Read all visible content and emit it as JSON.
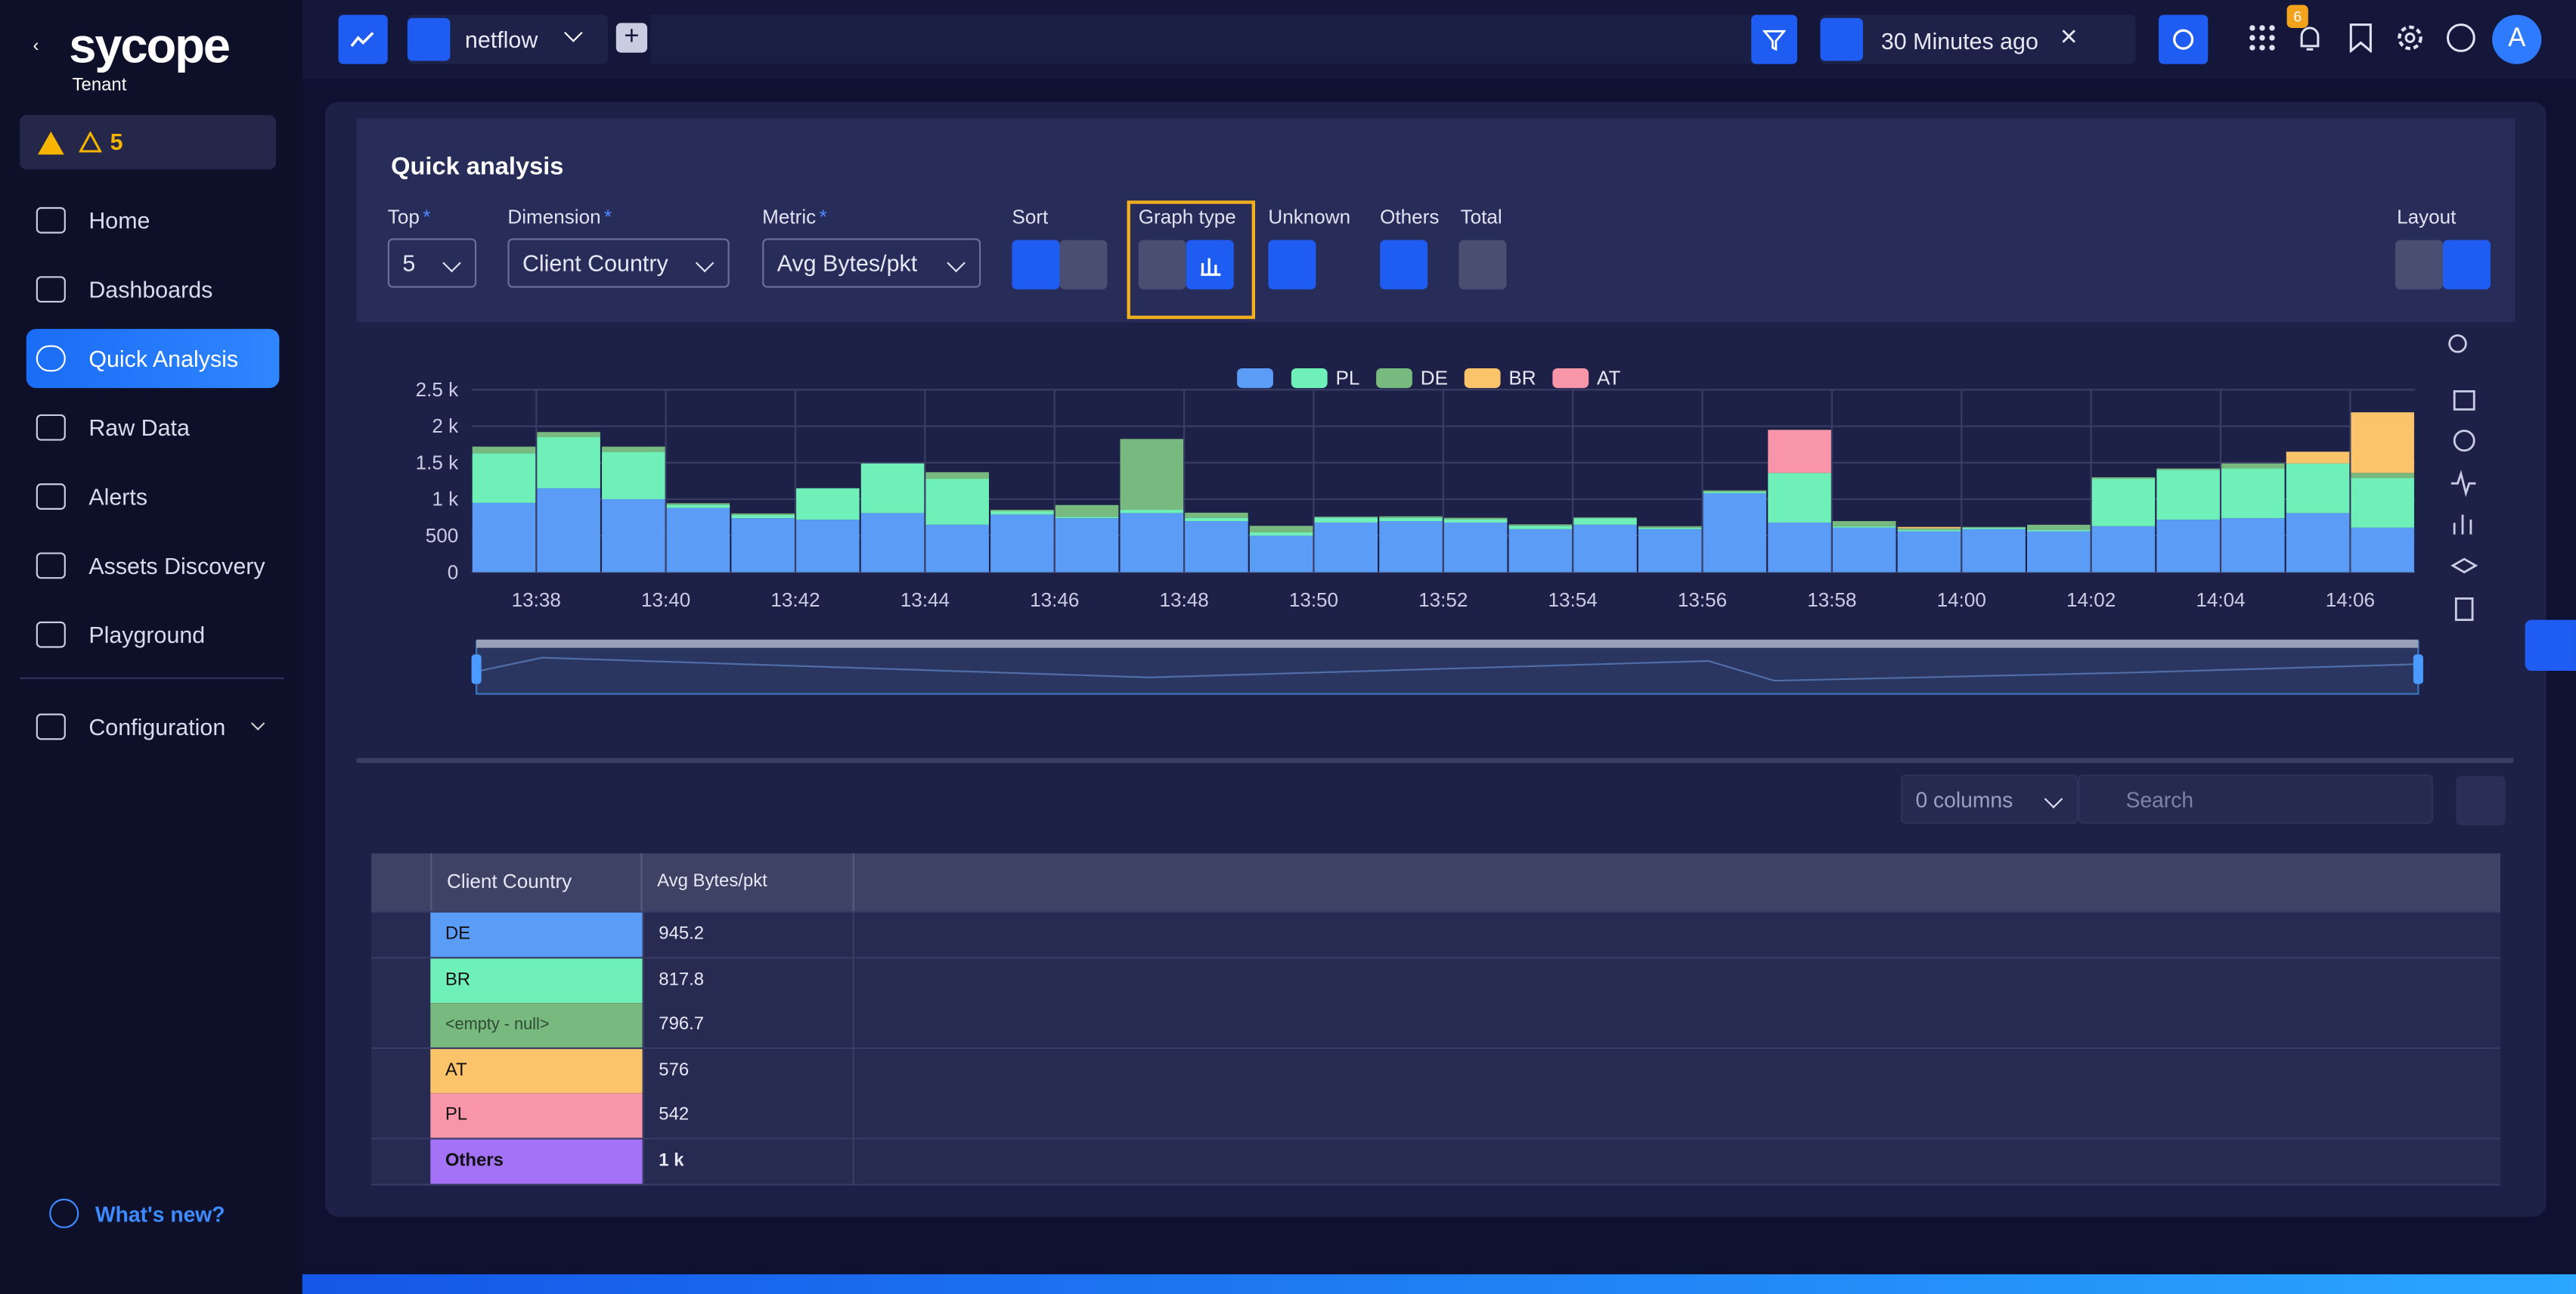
{
  "sidebar": {
    "logo": "sycope",
    "tenant": "Tenant",
    "alerts_count": "5",
    "nav": [
      "Home",
      "Dashboards",
      "Quick Analysis",
      "Raw Data",
      "Alerts",
      "Assets Discovery",
      "Playground",
      "Configuration"
    ],
    "whats_new": "What's new?"
  },
  "topbar": {
    "source": "netflow",
    "time_range": "30 Minutes ago",
    "notifications": "6",
    "avatar": "A"
  },
  "toolbar": {
    "title": "Quick analysis",
    "required_mark": "*",
    "top_label": "Top",
    "top_value": "5",
    "dimension_label": "Dimension",
    "dimension_value": "Client Country",
    "metric_label": "Metric",
    "metric_value": "Avg Bytes/pkt",
    "sort_label": "Sort",
    "graph_type_label": "Graph type",
    "unknown_label": "Unknown",
    "others_label": "Others",
    "total_label": "Total",
    "layout_label": "Layout"
  },
  "chart_data": {
    "type": "bar",
    "stacked": true,
    "grid": true,
    "categories": [
      null,
      "13:38",
      null,
      "13:40",
      null,
      "13:42",
      null,
      "13:44",
      null,
      "13:46",
      null,
      "13:48",
      null,
      "13:50",
      null,
      "13:52",
      null,
      "13:54",
      null,
      "13:56",
      null,
      "13:58",
      null,
      "14:00",
      null,
      "14:02",
      null,
      "14:04",
      null,
      "14:06"
    ],
    "ylim": [
      0,
      2500
    ],
    "yticks": [
      0,
      500,
      {
        "value": 1000,
        "label": "1 k"
      },
      {
        "value": 1500,
        "label": "1.5 k"
      },
      {
        "value": 2000,
        "label": "2 k"
      },
      {
        "value": 2500,
        "label": "2.5 k"
      }
    ],
    "series": [
      {
        "name": null,
        "color": "#5b9cf6",
        "values": [
          950,
          1150,
          1000,
          880,
          740,
          720,
          810,
          650,
          790,
          740,
          810,
          700,
          500,
          680,
          700,
          680,
          590,
          650,
          590,
          1080,
          680,
          610,
          560,
          590,
          560,
          630,
          720,
          740,
          810,
          610
        ]
      },
      {
        "name": "PL",
        "color": "#6ff0b8",
        "values": [
          680,
          700,
          650,
          45,
          45,
          430,
          680,
          630,
          45,
          20,
          45,
          45,
          45,
          70,
          45,
          45,
          45,
          90,
          20,
          20,
          680,
          20,
          20,
          20,
          20,
          650,
          680,
          680,
          680,
          680
        ]
      },
      {
        "name": "DE",
        "color": "#77b97f",
        "values": [
          90,
          70,
          70,
          20,
          20,
          0,
          0,
          90,
          20,
          160,
          970,
          70,
          90,
          10,
          20,
          20,
          20,
          10,
          20,
          20,
          0,
          70,
          20,
          10,
          70,
          20,
          20,
          70,
          0,
          70
        ]
      },
      {
        "name": "BR",
        "color": "#fcc46a",
        "values": [
          0,
          0,
          0,
          0,
          0,
          0,
          0,
          0,
          0,
          0,
          0,
          0,
          0,
          0,
          0,
          0,
          0,
          0,
          0,
          0,
          0,
          0,
          20,
          0,
          0,
          0,
          0,
          0,
          160,
          830
        ]
      },
      {
        "name": "AT",
        "color": "#f895a8",
        "values": [
          0,
          0,
          0,
          0,
          0,
          0,
          0,
          0,
          0,
          0,
          0,
          0,
          0,
          0,
          0,
          0,
          0,
          0,
          0,
          0,
          590,
          0,
          0,
          0,
          0,
          0,
          0,
          0,
          0,
          0
        ]
      }
    ]
  },
  "table_toolbar": {
    "columns": "0 columns",
    "search_placeholder": "Search"
  },
  "table": {
    "columns": [
      "Client Country",
      "Avg Bytes/pkt"
    ],
    "rows": [
      {
        "cells": [
          "DE",
          "945.2"
        ],
        "color": "#5b9cf6"
      },
      {
        "cells": [
          "BR",
          "817.8"
        ],
        "color": "#6ff0b8"
      },
      {
        "cells": [
          "<empty - null>",
          "796.7"
        ],
        "color": "#77b97f"
      },
      {
        "cells": [
          "AT",
          "576"
        ],
        "color": "#fcc46a"
      },
      {
        "cells": [
          "PL",
          "542"
        ],
        "color": "#f895a8"
      },
      {
        "cells": [
          "Others",
          "1 k"
        ],
        "color": "#a472f7"
      }
    ]
  }
}
